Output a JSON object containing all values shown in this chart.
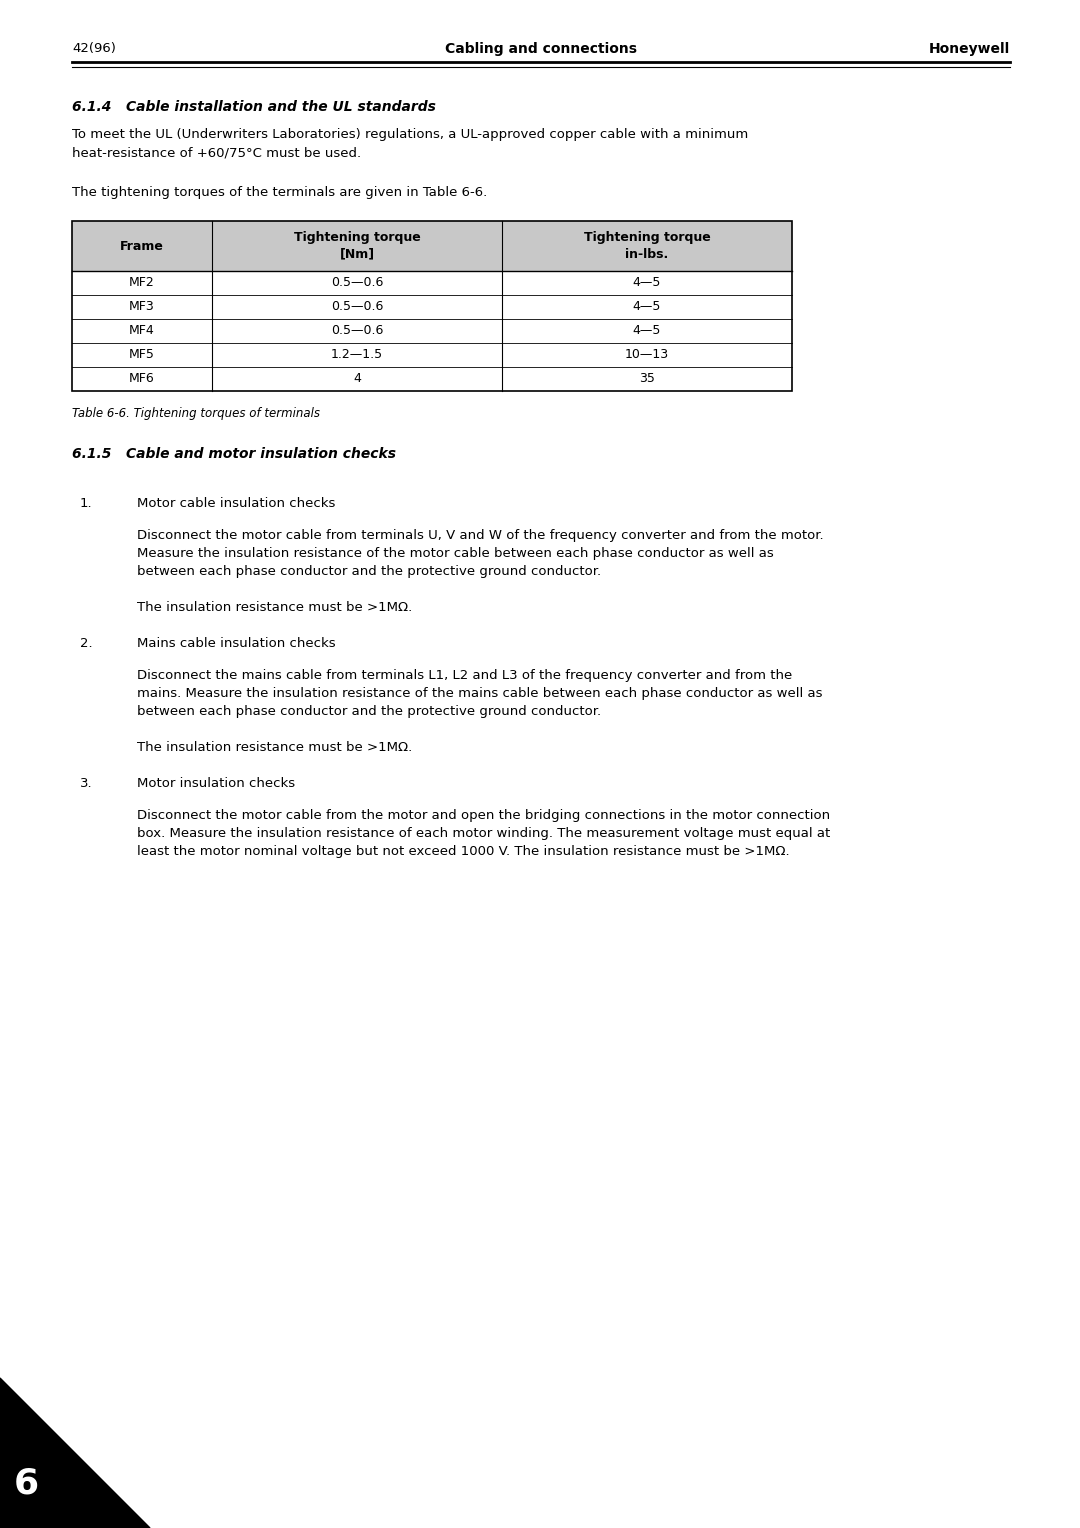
{
  "page_number": "42(96)",
  "header_center": "Cabling and connections",
  "header_right": "Honeywell",
  "section_614_title": "6.1.4   Cable installation and the UL standards",
  "para1_line1": "To meet the UL (Underwriters Laboratories) regulations, a UL-approved copper cable with a minimum",
  "para1_line2": "heat-resistance of +60/75°C must be used.",
  "para2": "The tightening torques of the terminals are given in Table 6-6.",
  "table_headers": [
    "Frame",
    "Tightening torque\n[Nm]",
    "Tightening torque\nin-lbs."
  ],
  "table_rows": [
    [
      "MF2",
      "0.5—0.6",
      "4—5"
    ],
    [
      "MF3",
      "0.5—0.6",
      "4—5"
    ],
    [
      "MF4",
      "0.5—0.6",
      "4—5"
    ],
    [
      "MF5",
      "1.2—1.5",
      "10—13"
    ],
    [
      "MF6",
      "4",
      "35"
    ]
  ],
  "table_caption": "Table 6-6. Tightening torques of terminals",
  "section_615_title": "6.1.5   Cable and motor insulation checks",
  "item1_title": "Motor cable insulation checks",
  "item1_para1_line1": "Disconnect the motor cable from terminals U, V and W of the frequency converter and from the motor.",
  "item1_para1_line2": "Measure the insulation resistance of the motor cable between each phase conductor as well as",
  "item1_para1_line3": "between each phase conductor and the protective ground conductor.",
  "item1_para2": "The insulation resistance must be >1MΩ.",
  "item2_title": "Mains cable insulation checks",
  "item2_para1_line1": "Disconnect the mains cable from terminals L1, L2 and L3 of the frequency converter and from the",
  "item2_para1_line2": "mains. Measure the insulation resistance of the mains cable between each phase conductor as well as",
  "item2_para1_line3": "between each phase conductor and the protective ground conductor.",
  "item2_para2": "The insulation resistance must be >1MΩ.",
  "item3_title": "Motor insulation checks",
  "item3_para1_line1": "Disconnect the motor cable from the motor and open the bridging connections in the motor connection",
  "item3_para1_line2": "box. Measure the insulation resistance of each motor winding. The measurement voltage must equal at",
  "item3_para1_line3": "least the motor nominal voltage but not exceed 1000 V. The insulation resistance must be >1MΩ.",
  "corner_number": "6",
  "bg_color": "#ffffff",
  "text_color": "#000000",
  "table_header_bg": "#c8c8c8",
  "font_body": "DejaVu Sans",
  "font_size_body": 9.5,
  "font_size_header": 10.0,
  "font_size_table": 9.0,
  "font_size_caption": 8.5
}
